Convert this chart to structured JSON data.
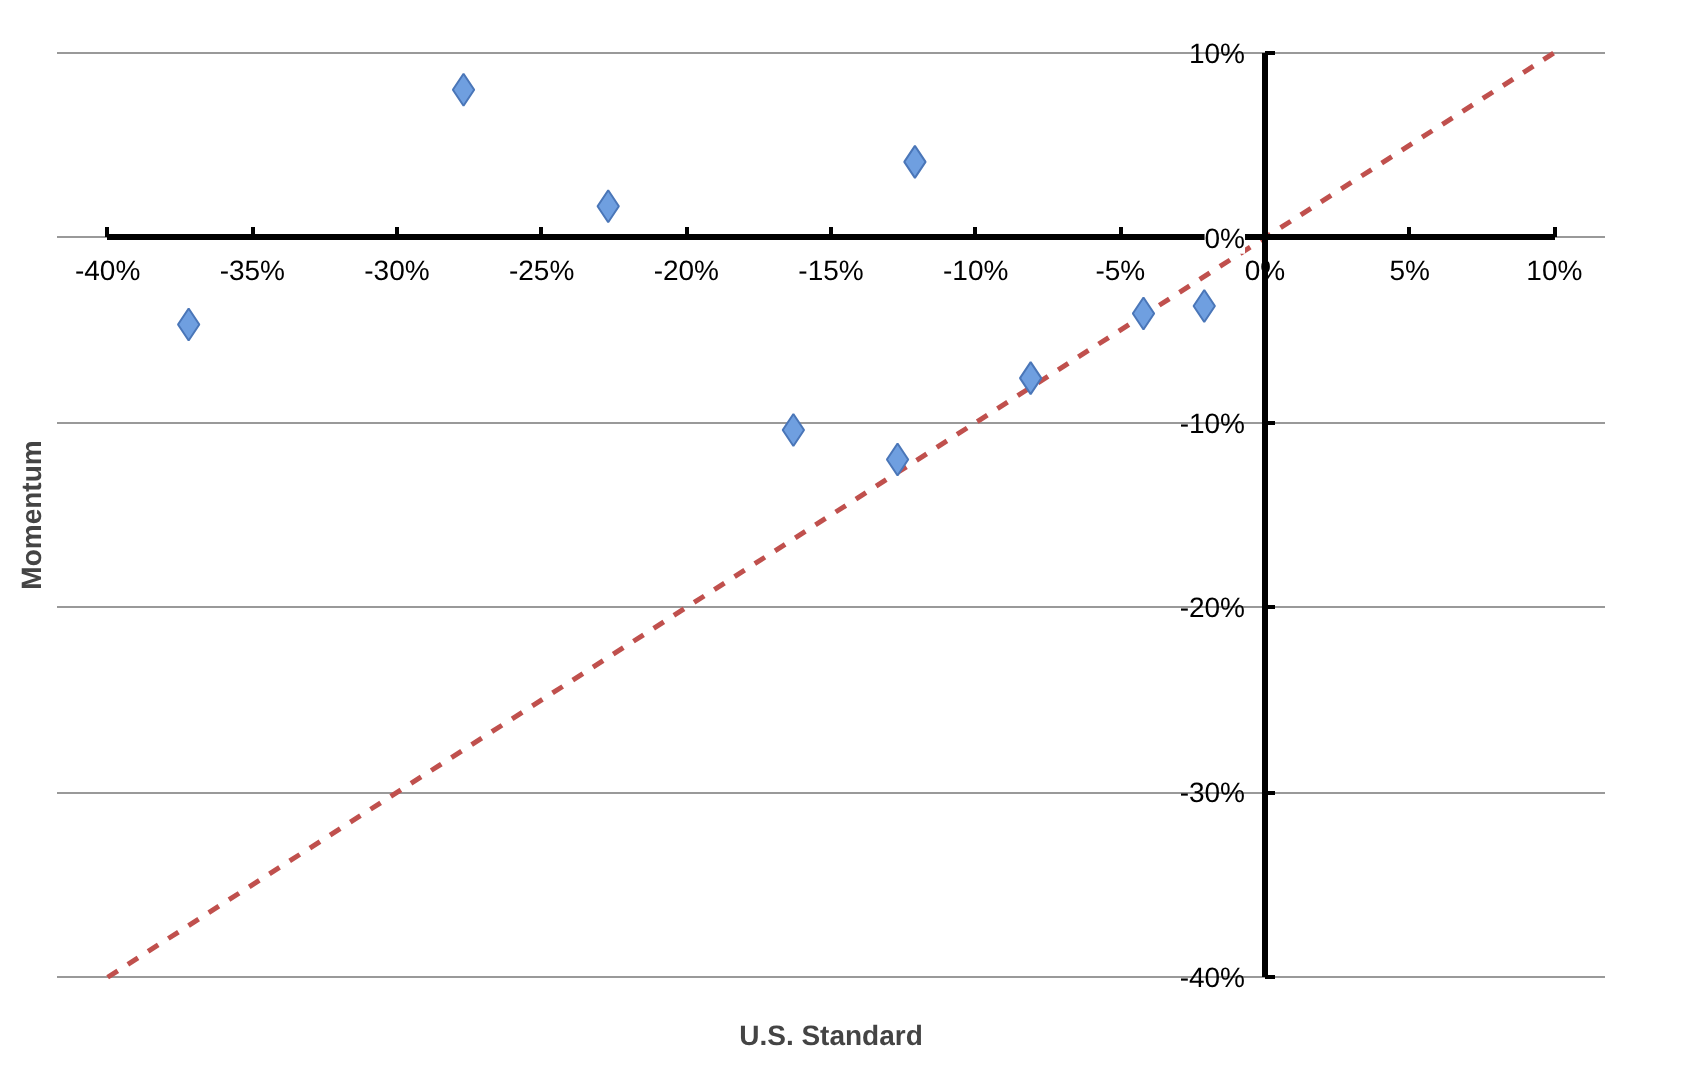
{
  "chart_data": {
    "type": "scatter",
    "xlabel": "U.S. Standard",
    "ylabel": "Momentum",
    "grid": "y",
    "xlim": [
      -40,
      10
    ],
    "ylim": [
      -40,
      10
    ],
    "xticks": [
      {
        "value": -40,
        "label": "-40%"
      },
      {
        "value": -35,
        "label": "-35%"
      },
      {
        "value": -30,
        "label": "-30%"
      },
      {
        "value": -25,
        "label": "-25%"
      },
      {
        "value": -20,
        "label": "-20%"
      },
      {
        "value": -15,
        "label": "-15%"
      },
      {
        "value": -10,
        "label": "-10%"
      },
      {
        "value": -5,
        "label": "-5%"
      },
      {
        "value": 0,
        "label": "0%"
      },
      {
        "value": 5,
        "label": "5%"
      },
      {
        "value": 10,
        "label": "10%"
      }
    ],
    "yticks": [
      {
        "value": -40,
        "label": "-40%"
      },
      {
        "value": -30,
        "label": "-30%"
      },
      {
        "value": -20,
        "label": "-20%"
      },
      {
        "value": -10,
        "label": "-10%"
      },
      {
        "value": 0,
        "label": "0%"
      },
      {
        "value": 10,
        "label": "10%"
      }
    ],
    "series": [
      {
        "marker": "diamond",
        "color": "#6f9fe0",
        "x": [
          -37.2,
          -27.7,
          -22.7,
          -12.1,
          -16.3,
          -12.7,
          -8.1,
          -4.2,
          -2.1
        ],
        "values": [
          -4.7,
          8.0,
          1.7,
          4.1,
          -10.4,
          -12.0,
          -7.6,
          -4.1,
          -3.7
        ]
      },
      {
        "type": "line",
        "line_style": "dashed",
        "color": "#c0504d",
        "x": [
          -40,
          10
        ],
        "values": [
          -40,
          10
        ]
      }
    ]
  }
}
